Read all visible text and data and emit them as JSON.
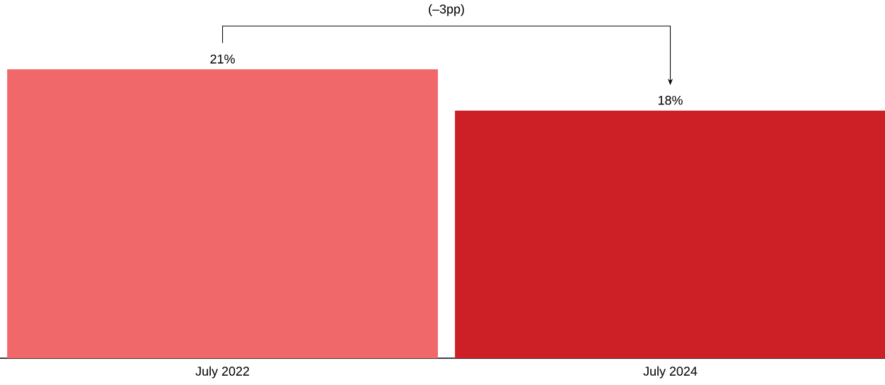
{
  "chart_data": {
    "type": "bar",
    "categories": [
      "July 2022",
      "July 2024"
    ],
    "values": [
      21,
      18
    ],
    "value_labels": [
      "21%",
      "18%"
    ],
    "colors": [
      "#f0686a",
      "#cc1f26"
    ],
    "annotations": [
      "(–3pp)"
    ]
  }
}
